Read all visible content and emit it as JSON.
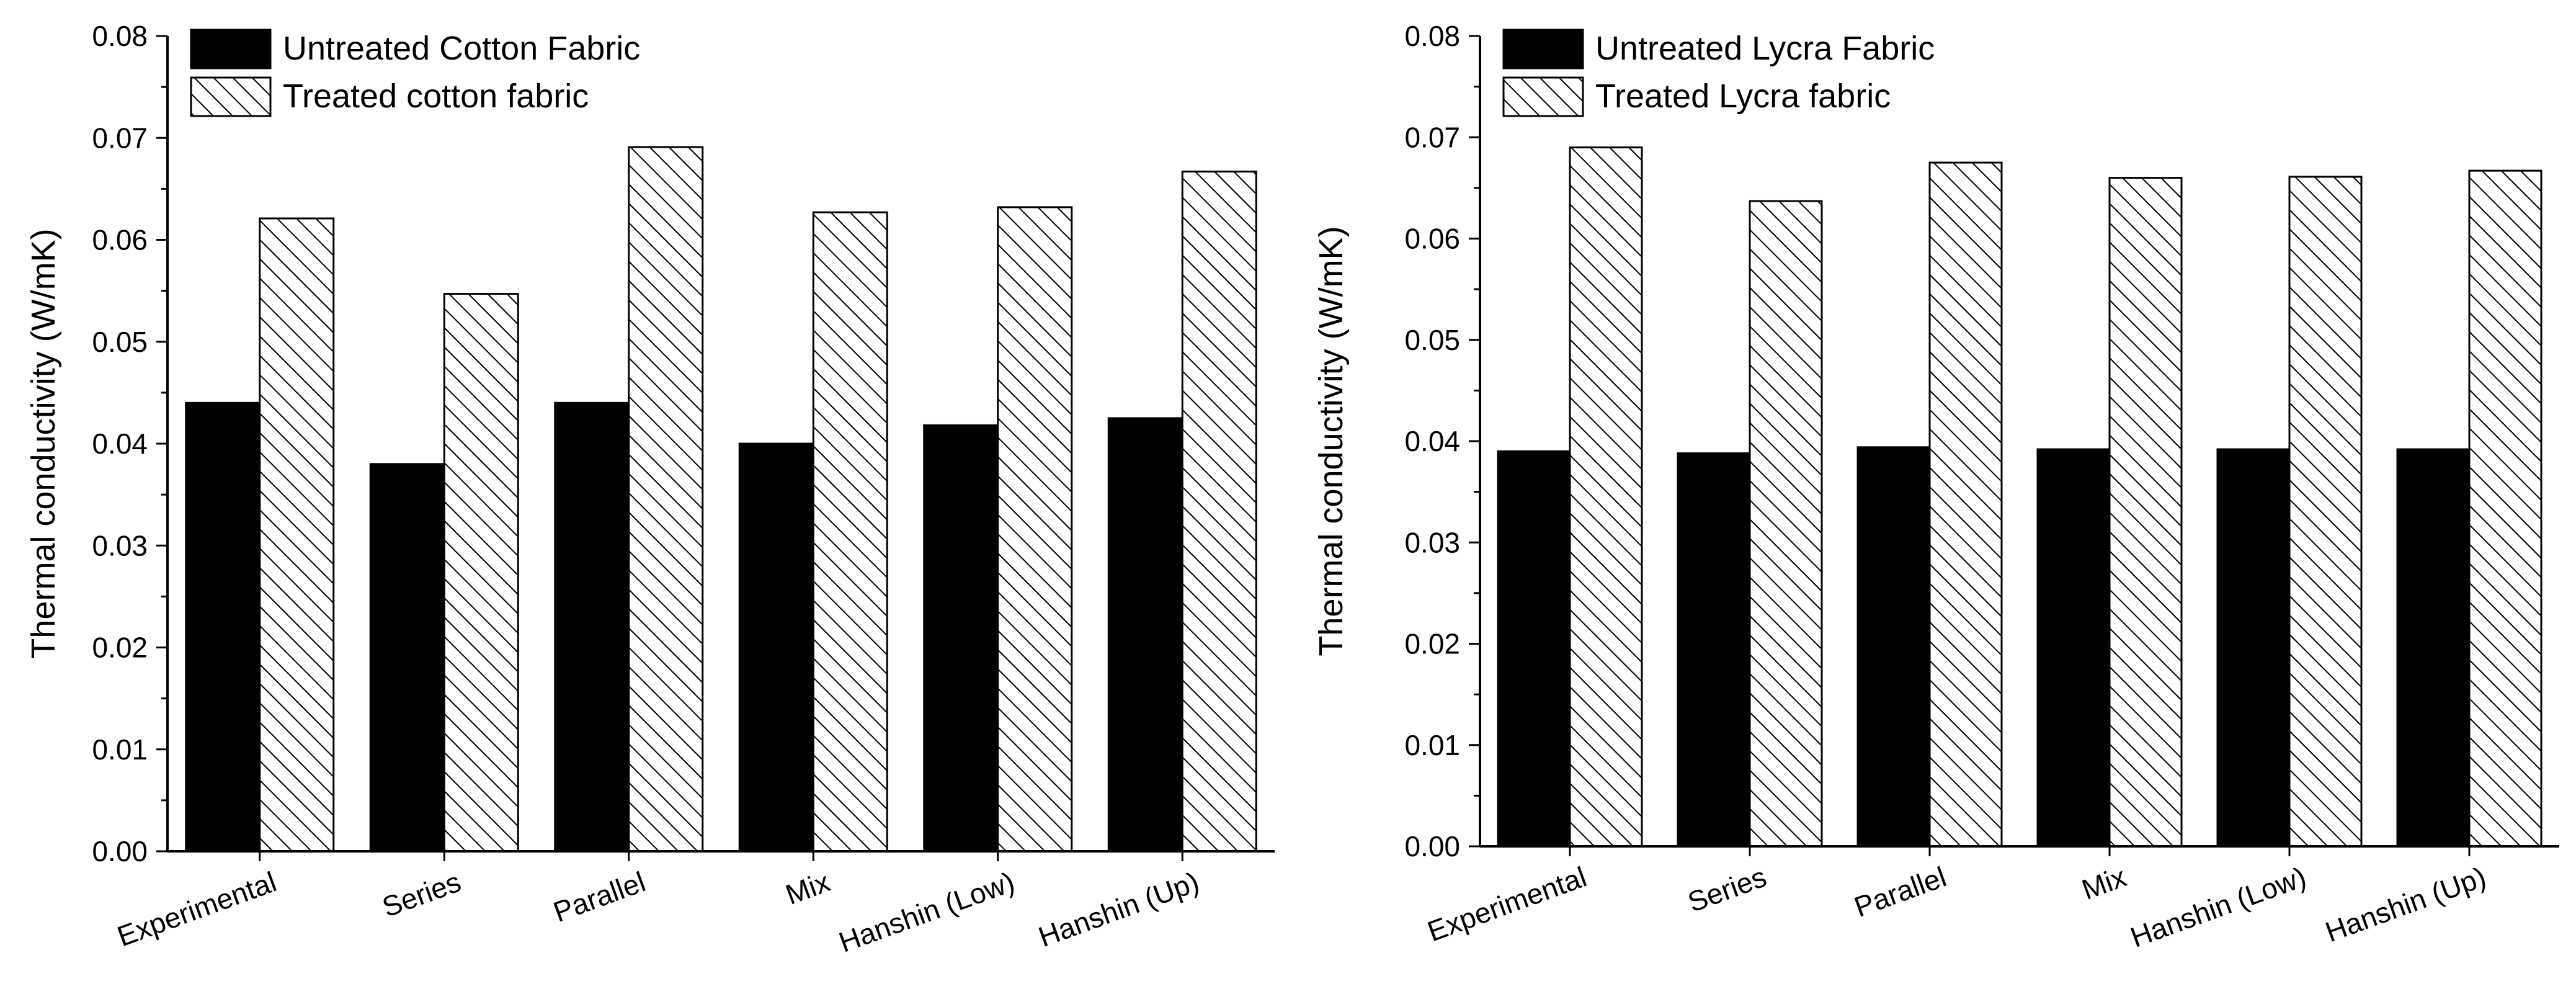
{
  "chart_data": [
    {
      "type": "bar",
      "title": "",
      "xlabel": "",
      "ylabel": "Thermal conductivity (W/mK)",
      "ylim": [
        0,
        0.08
      ],
      "yticks": [
        "0.00",
        "0.01",
        "0.02",
        "0.03",
        "0.04",
        "0.05",
        "0.06",
        "0.07",
        "0.08"
      ],
      "grid": false,
      "legend_position": "top-left",
      "categories": [
        "Experimental",
        "Series",
        "Parallel",
        "Mix",
        "Hanshin (Low)",
        "Hanshin (Up)"
      ],
      "series": [
        {
          "name": "Untreated Cotton Fabric",
          "style": "solid",
          "values": [
            0.044,
            0.038,
            0.044,
            0.04,
            0.0418,
            0.0425
          ]
        },
        {
          "name": "Treated cotton fabric",
          "style": "hatched",
          "values": [
            0.0621,
            0.0547,
            0.0691,
            0.0627,
            0.0632,
            0.0667
          ]
        }
      ]
    },
    {
      "type": "bar",
      "title": "",
      "xlabel": "",
      "ylabel": "Thermal conductivity (W/mK)",
      "ylim": [
        0,
        0.08
      ],
      "yticks": [
        "0.00",
        "0.01",
        "0.02",
        "0.03",
        "0.04",
        "0.05",
        "0.06",
        "0.07",
        "0.08"
      ],
      "grid": false,
      "legend_position": "top-left",
      "categories": [
        "Experimental",
        "Series",
        "Parallel",
        "Mix",
        "Hanshin (Low)",
        "Hanshin (Up)"
      ],
      "series": [
        {
          "name": "Untreated Lycra Fabric",
          "style": "solid",
          "values": [
            0.039,
            0.0388,
            0.0394,
            0.0392,
            0.0392,
            0.0392
          ]
        },
        {
          "name": "Treated Lycra fabric",
          "style": "hatched",
          "values": [
            0.069,
            0.0637,
            0.0675,
            0.066,
            0.0661,
            0.0667
          ]
        }
      ]
    }
  ],
  "colors": {
    "solid_bar": "#000000",
    "hatch": "#000000",
    "background": "#ffffff"
  }
}
